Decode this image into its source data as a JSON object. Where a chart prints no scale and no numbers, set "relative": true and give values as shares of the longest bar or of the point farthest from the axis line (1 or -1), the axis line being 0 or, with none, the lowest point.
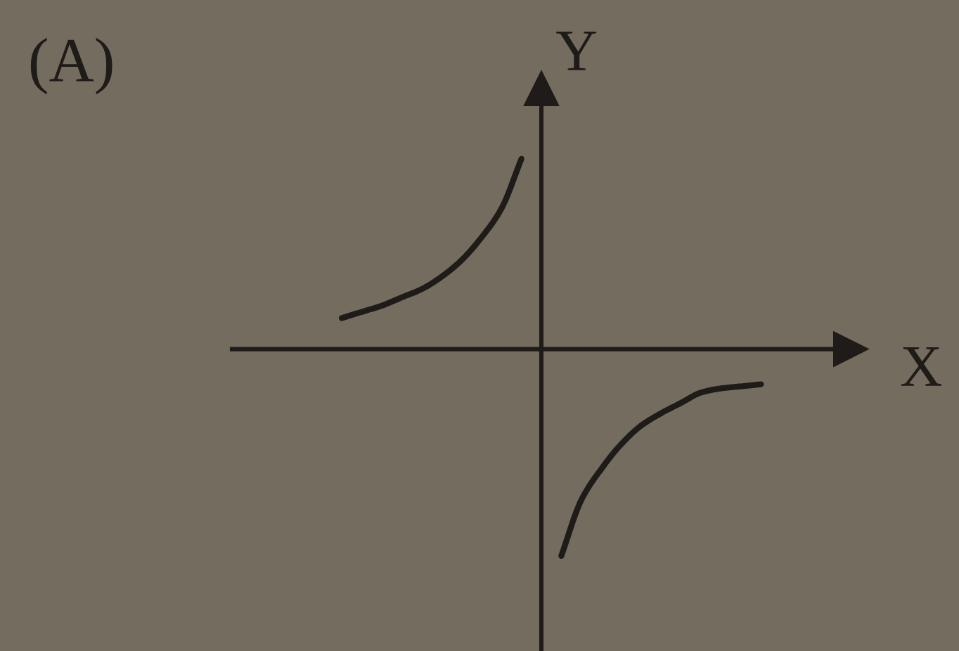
{
  "chart_data": {
    "type": "line",
    "title": "(A)",
    "xlabel": "X",
    "ylabel": "Y",
    "relative": true,
    "categories": [
      null,
      null,
      null,
      null,
      null,
      null,
      null,
      null,
      null,
      null,
      null,
      null,
      null,
      null,
      null,
      null,
      null,
      null,
      null,
      null,
      null,
      null,
      null,
      null,
      null,
      null,
      null,
      null,
      null,
      null,
      null
    ],
    "series": [
      {
        "color": "#1e1b18",
        "values": [
          null,
          null,
          null,
          null,
          null,
          0.15,
          0.18,
          0.21,
          0.25,
          0.29,
          0.35,
          0.43,
          0.54,
          0.68,
          0.92,
          null,
          null,
          null,
          null,
          null,
          null,
          null,
          null,
          null,
          null,
          null,
          null,
          null,
          null,
          null,
          null
        ]
      },
      {
        "color": "#1e1b18",
        "values": [
          null,
          null,
          null,
          null,
          null,
          null,
          null,
          null,
          null,
          null,
          null,
          null,
          null,
          null,
          null,
          null,
          -1,
          -0.73,
          -0.58,
          -0.46,
          -0.37,
          -0.31,
          -0.26,
          -0.21,
          -0.19,
          -0.18,
          -0.17,
          null,
          null,
          null,
          null
        ]
      }
    ]
  }
}
